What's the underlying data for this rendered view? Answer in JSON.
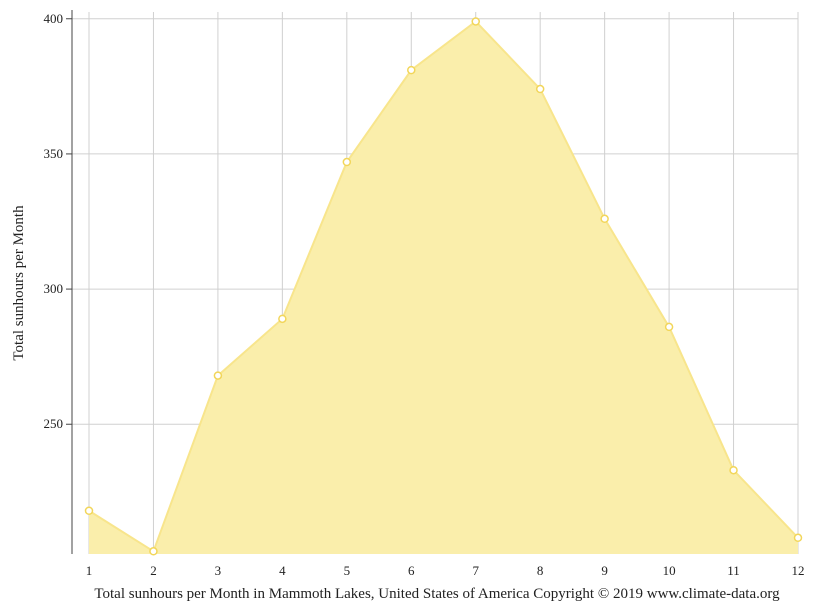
{
  "chart_data": {
    "type": "area",
    "x": [
      "1",
      "2",
      "3",
      "4",
      "5",
      "6",
      "7",
      "8",
      "9",
      "10",
      "11",
      "12"
    ],
    "series": [
      {
        "values": [
          218,
          203,
          268,
          289,
          347,
          381,
          399,
          374,
          326,
          286,
          233,
          208
        ]
      }
    ],
    "ylabel": "Total sunhours per Month",
    "caption": "Total sunhours per Month in Mammoth Lakes, United States of America Copyright © 2019 www.climate-data.org",
    "yticks": [
      250,
      300,
      350,
      400
    ],
    "ylim": [
      202,
      402.5
    ],
    "grid": true,
    "colors": {
      "fill": "#faeeab",
      "line": "#f8e58c",
      "marker_fill": "#ffffff",
      "marker_stroke": "#f2d65a",
      "grid": "#d0d0d0",
      "axis": "#444444"
    }
  }
}
